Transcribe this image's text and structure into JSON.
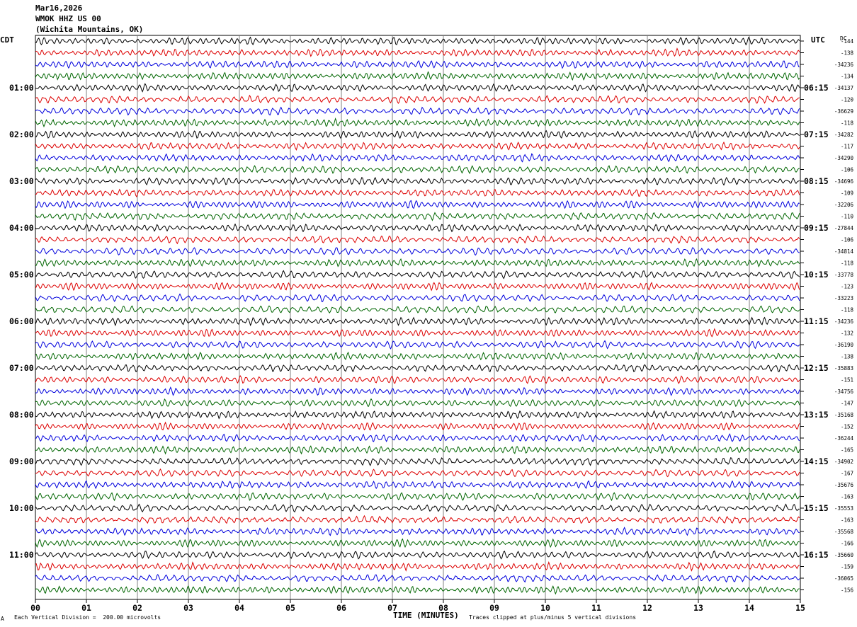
{
  "header": {
    "date": "Mar16,2026",
    "station": "WMOK HHZ US 00",
    "location": "(Wichita Mountains, OK)"
  },
  "corner": {
    "left": "CDT",
    "right": "UTC",
    "dc": "DC"
  },
  "footer": {
    "division": "Each Vertical Division =  200.00 microvolts",
    "xlabel": "TIME (MINUTES)",
    "clip": "Traces clipped at plus/minus 5 vertical divisions",
    "mark": "A"
  },
  "colors": {
    "traces": [
      "#000000",
      "#dd0000",
      "#0000dd",
      "#006600"
    ],
    "grid": "#808080"
  },
  "chart_data": {
    "type": "line",
    "xlabel": "TIME (MINUTES)",
    "xlim": [
      0,
      15
    ],
    "x_ticks": [
      "00",
      "01",
      "02",
      "03",
      "04",
      "05",
      "06",
      "07",
      "08",
      "09",
      "10",
      "11",
      "12",
      "13",
      "14",
      "15"
    ],
    "left_times": [
      "01:00",
      "02:00",
      "03:00",
      "04:00",
      "05:00",
      "06:00",
      "07:00",
      "08:00",
      "09:00",
      "10:00",
      "11:00"
    ],
    "right_times": [
      "06:15",
      "07:15",
      "08:15",
      "09:15",
      "10:15",
      "11:15",
      "12:15",
      "13:15",
      "14:15",
      "15:15",
      "16:15"
    ],
    "dc_offsets": [
      "-144",
      "-138",
      "-34236",
      "-134",
      "-34137",
      "-120",
      "-36629",
      "-118",
      "-34282",
      "-117",
      "-34290",
      "-106",
      "-34696",
      "-109",
      "-32206",
      "-110",
      "-27844",
      "-106",
      "-34814",
      "-118",
      "-33778",
      "-123",
      "-33223",
      "-118",
      "-34236",
      "-132",
      "-36190",
      "-138",
      "-35883",
      "-151",
      "-34756",
      "-147",
      "-35168",
      "-152",
      "-36244",
      "-165",
      "-34902",
      "-167",
      "-35676",
      "-163",
      "-35553",
      "-163",
      "-35568",
      "-166",
      "-35660",
      "-159",
      "-36065",
      "-156"
    ]
  }
}
